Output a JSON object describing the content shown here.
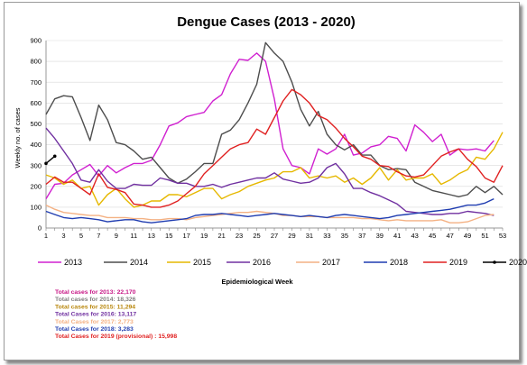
{
  "chart_data": {
    "type": "line",
    "title": "Dengue Cases (2013 - 2020)",
    "xlabel": "Epidemiological Week",
    "ylabel": "Weekly no. of cases",
    "xlim": [
      1,
      53
    ],
    "ylim": [
      0,
      900
    ],
    "x_ticks": [
      "1",
      "3",
      "5",
      "7",
      "9",
      "11",
      "13",
      "15",
      "17",
      "19",
      "21",
      "23",
      "25",
      "27",
      "29",
      "31",
      "33",
      "35",
      "37",
      "39",
      "41",
      "43",
      "45",
      "47",
      "49",
      "51",
      "53"
    ],
    "y_ticks": [
      "0",
      "100",
      "200",
      "300",
      "400",
      "500",
      "600",
      "700",
      "800",
      "900"
    ],
    "grid": true,
    "legend_position": "bottom",
    "x": [
      1,
      2,
      3,
      4,
      5,
      6,
      7,
      8,
      9,
      10,
      11,
      12,
      13,
      14,
      15,
      16,
      17,
      18,
      19,
      20,
      21,
      22,
      23,
      24,
      25,
      26,
      27,
      28,
      29,
      30,
      31,
      32,
      33,
      34,
      35,
      36,
      37,
      38,
      39,
      40,
      41,
      42,
      43,
      44,
      45,
      46,
      47,
      48,
      49,
      50,
      51,
      52,
      53
    ],
    "series": [
      {
        "name": "2013",
        "color": "#d020d0",
        "values": [
          140,
          210,
          215,
          255,
          280,
          305,
          250,
          300,
          265,
          290,
          310,
          310,
          325,
          400,
          490,
          505,
          535,
          545,
          555,
          610,
          640,
          740,
          810,
          805,
          840,
          800,
          620,
          380,
          300,
          290,
          260,
          380,
          355,
          380,
          450,
          350,
          360,
          390,
          400,
          440,
          430,
          370,
          495,
          460,
          415,
          450,
          350,
          380,
          375,
          380,
          370,
          420,
          null
        ]
      },
      {
        "name": "2014",
        "color": "#4d4d4d",
        "values": [
          545,
          620,
          635,
          630,
          530,
          420,
          590,
          520,
          410,
          400,
          370,
          330,
          340,
          290,
          240,
          215,
          235,
          270,
          310,
          310,
          450,
          470,
          520,
          600,
          690,
          890,
          840,
          800,
          700,
          570,
          490,
          560,
          450,
          400,
          375,
          400,
          350,
          350,
          300,
          280,
          285,
          280,
          220,
          200,
          180,
          170,
          160,
          150,
          160,
          200,
          170,
          200,
          160
        ]
      },
      {
        "name": "2015",
        "color": "#e6b800",
        "values": [
          255,
          240,
          210,
          230,
          190,
          200,
          110,
          160,
          190,
          140,
          100,
          110,
          130,
          130,
          160,
          160,
          150,
          170,
          190,
          190,
          140,
          160,
          175,
          200,
          215,
          230,
          240,
          270,
          270,
          290,
          240,
          250,
          240,
          250,
          220,
          240,
          210,
          240,
          290,
          230,
          280,
          230,
          240,
          240,
          260,
          210,
          230,
          260,
          280,
          340,
          330,
          380,
          460
        ]
      },
      {
        "name": "2016",
        "color": "#7030a0",
        "values": [
          480,
          430,
          370,
          310,
          230,
          220,
          280,
          225,
          190,
          190,
          210,
          205,
          205,
          240,
          230,
          215,
          215,
          200,
          200,
          210,
          195,
          210,
          220,
          230,
          240,
          240,
          265,
          235,
          225,
          215,
          220,
          240,
          290,
          310,
          260,
          190,
          190,
          170,
          155,
          135,
          115,
          80,
          75,
          70,
          65,
          65,
          70,
          70,
          80,
          75,
          70,
          60,
          null
        ]
      },
      {
        "name": "2017",
        "color": "#f4b183",
        "values": [
          110,
          90,
          75,
          70,
          65,
          60,
          60,
          50,
          50,
          50,
          45,
          45,
          40,
          40,
          45,
          45,
          40,
          50,
          55,
          60,
          65,
          70,
          75,
          75,
          80,
          75,
          70,
          60,
          60,
          55,
          55,
          55,
          50,
          50,
          50,
          50,
          45,
          45,
          40,
          35,
          40,
          35,
          35,
          35,
          35,
          40,
          25,
          25,
          30,
          45,
          60,
          65,
          null
        ]
      },
      {
        "name": "2018",
        "color": "#1f3cb0",
        "values": [
          80,
          65,
          50,
          45,
          50,
          45,
          40,
          30,
          35,
          40,
          40,
          30,
          25,
          30,
          35,
          40,
          45,
          60,
          65,
          65,
          70,
          65,
          60,
          55,
          60,
          65,
          70,
          65,
          60,
          55,
          60,
          55,
          50,
          60,
          65,
          60,
          55,
          50,
          45,
          50,
          60,
          65,
          70,
          75,
          80,
          85,
          90,
          100,
          110,
          110,
          120,
          140,
          null
        ]
      },
      {
        "name": "2019",
        "color": "#e02020",
        "values": [
          210,
          245,
          220,
          220,
          190,
          160,
          260,
          195,
          185,
          170,
          115,
          110,
          100,
          100,
          110,
          130,
          165,
          200,
          260,
          300,
          340,
          380,
          400,
          410,
          475,
          450,
          530,
          610,
          665,
          640,
          600,
          540,
          520,
          480,
          430,
          390,
          345,
          330,
          300,
          295,
          270,
          250,
          245,
          255,
          300,
          345,
          365,
          380,
          330,
          295,
          240,
          220,
          300
        ]
      },
      {
        "name": "2020",
        "color": "#000000",
        "values": [
          310,
          345,
          null,
          null,
          null,
          null,
          null,
          null,
          null,
          null,
          null,
          null,
          null,
          null,
          null,
          null,
          null,
          null,
          null,
          null,
          null,
          null,
          null,
          null,
          null,
          null,
          null,
          null,
          null,
          null,
          null,
          null,
          null,
          null,
          null,
          null,
          null,
          null,
          null,
          null,
          null,
          null,
          null,
          null,
          null,
          null,
          null,
          null,
          null,
          null,
          null,
          null,
          null
        ]
      }
    ]
  },
  "totals": [
    {
      "text": "Total cases for 2013: 22,170",
      "color": "#c71585"
    },
    {
      "text": "Total cases for 2014: 18,326",
      "color": "#808080"
    },
    {
      "text": "Total cases for 2015: 11,294",
      "color": "#b8860b"
    },
    {
      "text": "Total Cases for 2016: 13,117",
      "color": "#7030a0"
    },
    {
      "text": "Total Cases for 2017: 2,773",
      "color": "#f4b183"
    },
    {
      "text": "Total Cases for 2018: 3,283",
      "color": "#1f3cb0"
    },
    {
      "text": "Total Cases for 2019 (provisional) : 15,998",
      "color": "#e02020"
    }
  ]
}
